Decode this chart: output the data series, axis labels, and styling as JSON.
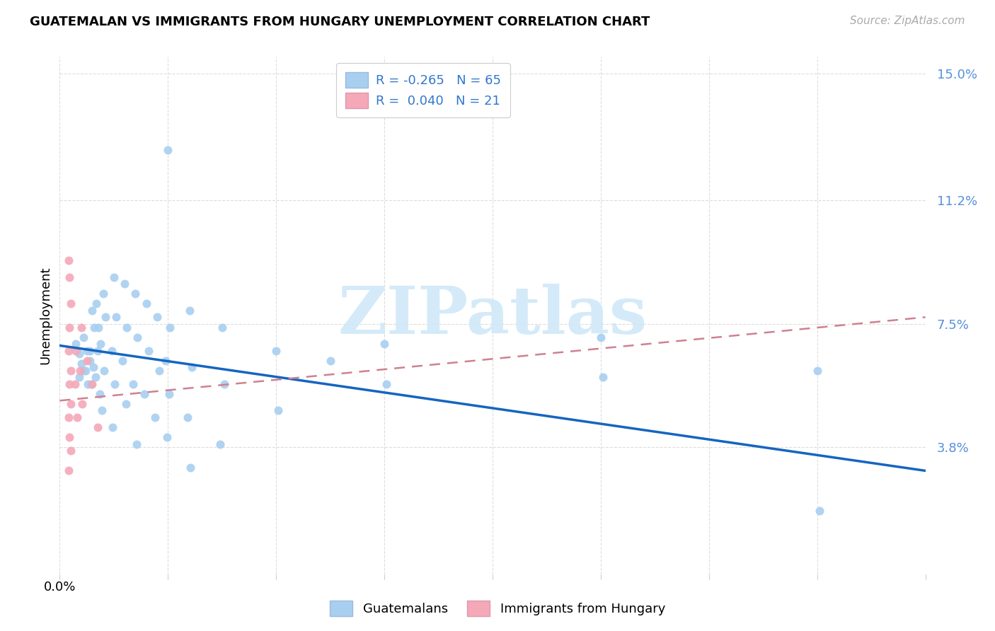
{
  "title": "GUATEMALAN VS IMMIGRANTS FROM HUNGARY UNEMPLOYMENT CORRELATION CHART",
  "source": "Source: ZipAtlas.com",
  "ylabel": "Unemployment",
  "yticks": [
    0.0,
    0.038,
    0.075,
    0.112,
    0.15
  ],
  "ytick_labels": [
    "",
    "3.8%",
    "7.5%",
    "11.2%",
    "15.0%"
  ],
  "xlim": [
    0.0,
    0.8
  ],
  "ylim": [
    0.0,
    0.155
  ],
  "blue_color": "#a8cff0",
  "pink_color": "#f4a8b8",
  "trend_blue": "#1565c0",
  "trend_pink": "#d08090",
  "blue_scatter": [
    [
      0.015,
      0.069
    ],
    [
      0.018,
      0.066
    ],
    [
      0.02,
      0.063
    ],
    [
      0.022,
      0.061
    ],
    [
      0.018,
      0.059
    ],
    [
      0.022,
      0.071
    ],
    [
      0.025,
      0.067
    ],
    [
      0.028,
      0.064
    ],
    [
      0.024,
      0.061
    ],
    [
      0.026,
      0.057
    ],
    [
      0.03,
      0.079
    ],
    [
      0.032,
      0.074
    ],
    [
      0.028,
      0.067
    ],
    [
      0.031,
      0.062
    ],
    [
      0.029,
      0.057
    ],
    [
      0.034,
      0.081
    ],
    [
      0.036,
      0.074
    ],
    [
      0.035,
      0.067
    ],
    [
      0.033,
      0.059
    ],
    [
      0.037,
      0.054
    ],
    [
      0.04,
      0.084
    ],
    [
      0.042,
      0.077
    ],
    [
      0.038,
      0.069
    ],
    [
      0.041,
      0.061
    ],
    [
      0.039,
      0.049
    ],
    [
      0.05,
      0.089
    ],
    [
      0.052,
      0.077
    ],
    [
      0.048,
      0.067
    ],
    [
      0.051,
      0.057
    ],
    [
      0.049,
      0.044
    ],
    [
      0.06,
      0.087
    ],
    [
      0.062,
      0.074
    ],
    [
      0.058,
      0.064
    ],
    [
      0.061,
      0.051
    ],
    [
      0.07,
      0.084
    ],
    [
      0.072,
      0.071
    ],
    [
      0.068,
      0.057
    ],
    [
      0.071,
      0.039
    ],
    [
      0.08,
      0.081
    ],
    [
      0.082,
      0.067
    ],
    [
      0.078,
      0.054
    ],
    [
      0.09,
      0.077
    ],
    [
      0.092,
      0.061
    ],
    [
      0.088,
      0.047
    ],
    [
      0.1,
      0.127
    ],
    [
      0.102,
      0.074
    ],
    [
      0.098,
      0.064
    ],
    [
      0.101,
      0.054
    ],
    [
      0.099,
      0.041
    ],
    [
      0.12,
      0.079
    ],
    [
      0.122,
      0.062
    ],
    [
      0.118,
      0.047
    ],
    [
      0.121,
      0.032
    ],
    [
      0.15,
      0.074
    ],
    [
      0.152,
      0.057
    ],
    [
      0.148,
      0.039
    ],
    [
      0.2,
      0.067
    ],
    [
      0.202,
      0.049
    ],
    [
      0.25,
      0.064
    ],
    [
      0.3,
      0.069
    ],
    [
      0.302,
      0.057
    ],
    [
      0.5,
      0.071
    ],
    [
      0.502,
      0.059
    ],
    [
      0.7,
      0.061
    ],
    [
      0.702,
      0.019
    ]
  ],
  "pink_scatter": [
    [
      0.008,
      0.094
    ],
    [
      0.009,
      0.089
    ],
    [
      0.01,
      0.081
    ],
    [
      0.009,
      0.074
    ],
    [
      0.008,
      0.067
    ],
    [
      0.01,
      0.061
    ],
    [
      0.009,
      0.057
    ],
    [
      0.01,
      0.051
    ],
    [
      0.008,
      0.047
    ],
    [
      0.009,
      0.041
    ],
    [
      0.01,
      0.037
    ],
    [
      0.008,
      0.031
    ],
    [
      0.015,
      0.067
    ],
    [
      0.014,
      0.057
    ],
    [
      0.016,
      0.047
    ],
    [
      0.02,
      0.074
    ],
    [
      0.019,
      0.061
    ],
    [
      0.021,
      0.051
    ],
    [
      0.025,
      0.064
    ],
    [
      0.03,
      0.057
    ],
    [
      0.035,
      0.044
    ]
  ],
  "blue_trendline": [
    [
      0.0,
      0.0685
    ],
    [
      0.8,
      0.031
    ]
  ],
  "pink_trendline": [
    [
      0.0,
      0.052
    ],
    [
      0.8,
      0.077
    ]
  ],
  "legend_label1": "R = -0.265   N = 65",
  "legend_label2": "R =  0.040   N = 21",
  "bottom_label1": "Guatemalans",
  "bottom_label2": "Immigrants from Hungary",
  "legend_text_color": "#3377cc",
  "ytick_color": "#5590dd",
  "watermark_text": "ZIPatlas",
  "watermark_color": "#d0e8f8",
  "grid_color": "#dddddd",
  "title_fontsize": 13,
  "source_fontsize": 11,
  "tick_fontsize": 13,
  "legend_fontsize": 13
}
